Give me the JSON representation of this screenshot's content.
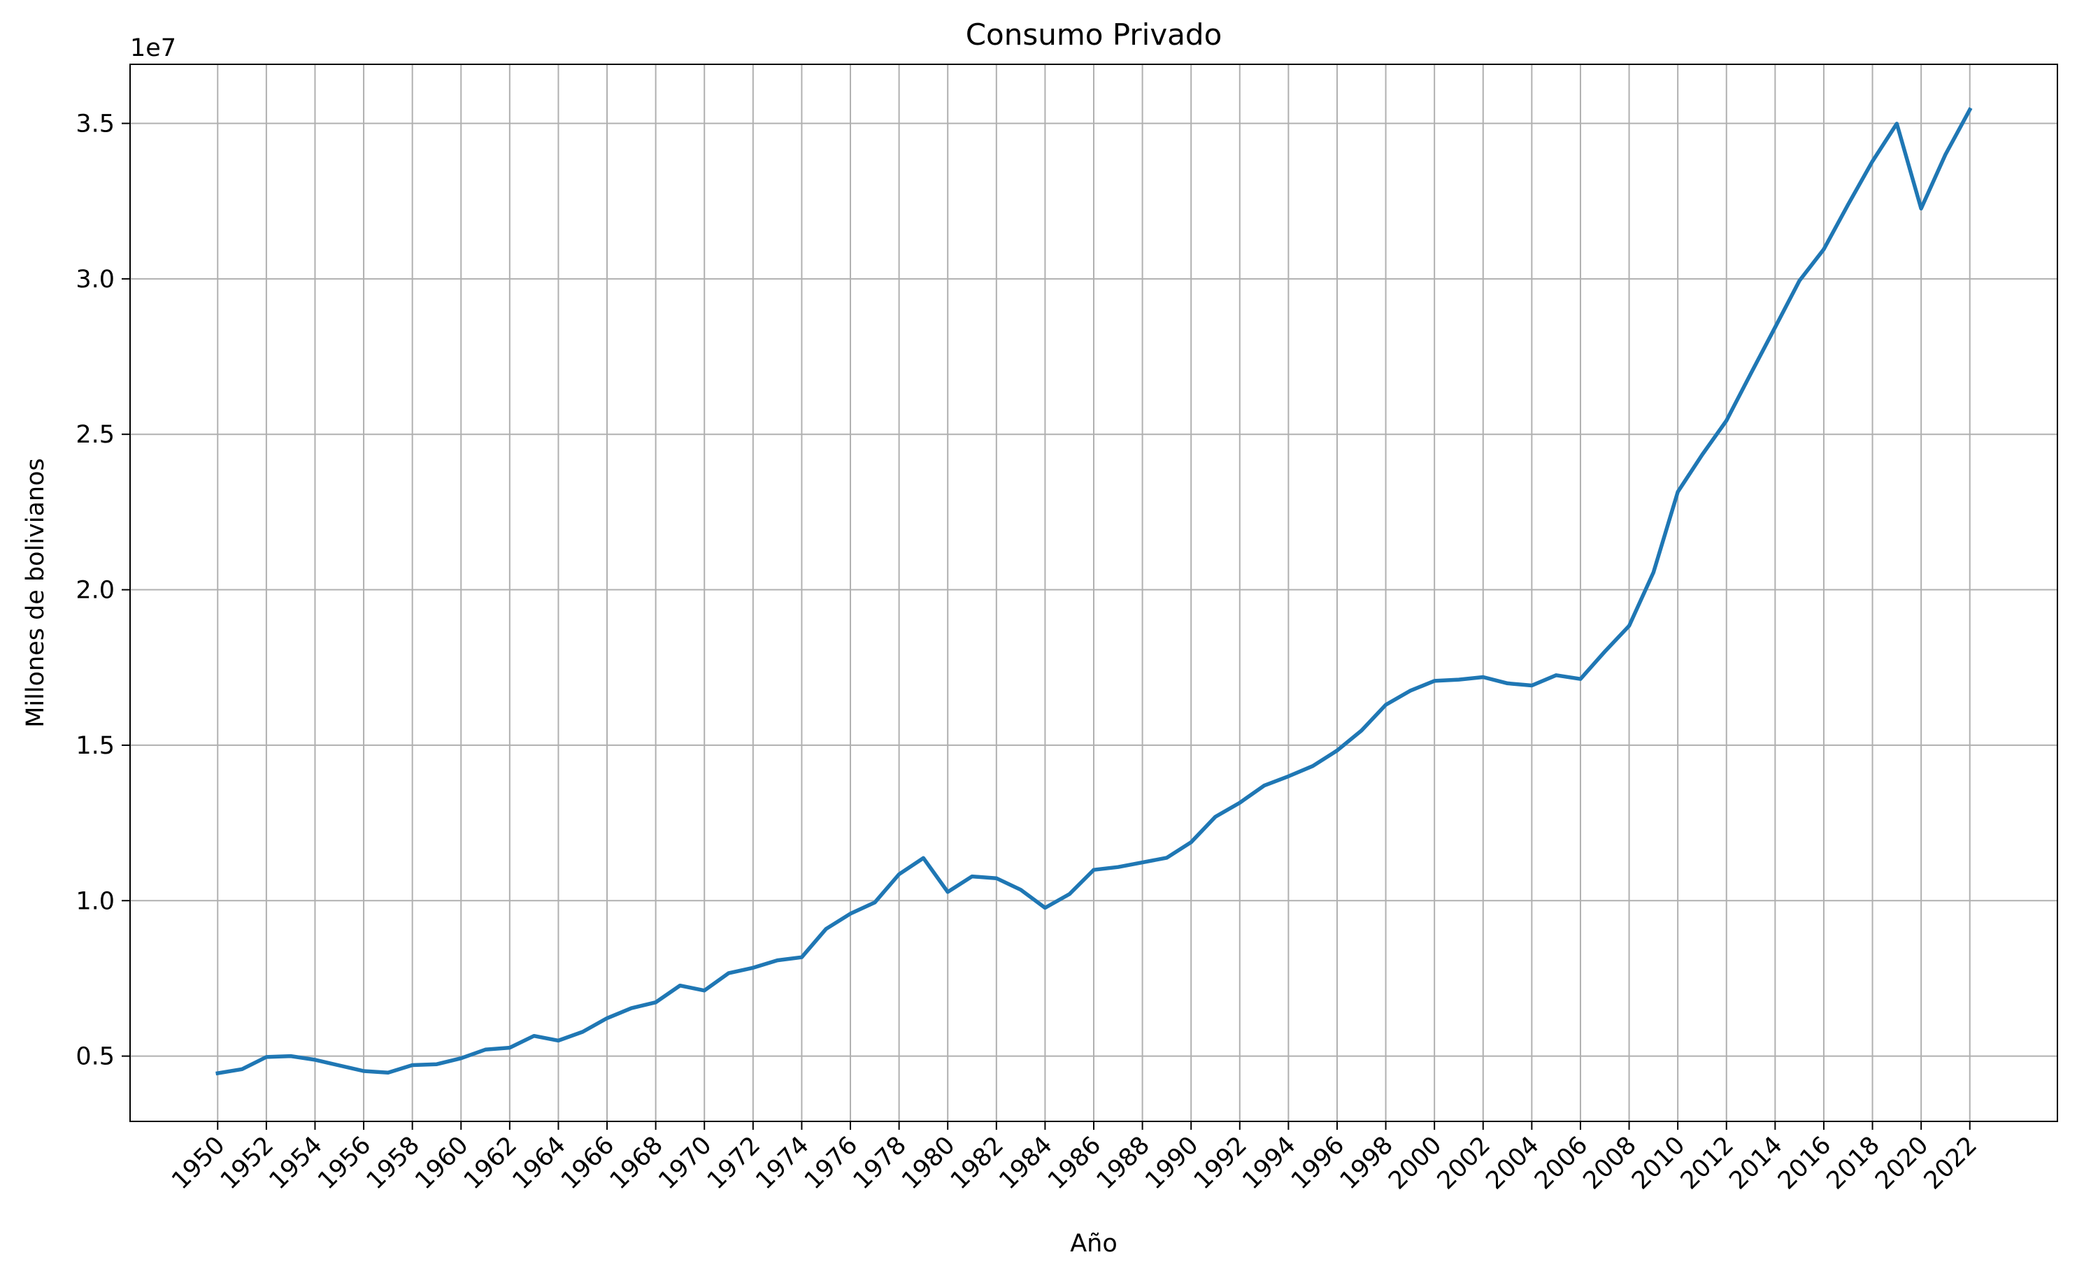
{
  "chart_data": {
    "type": "line",
    "title": "Consumo Privado",
    "xlabel": "Año",
    "ylabel": "Millones de bolivianos",
    "y_offset_label": "1e7",
    "xlim": [
      1946.4,
      2025.6
    ],
    "ylim": [
      2900000,
      36900000
    ],
    "grid": true,
    "legend": "none",
    "line_color": "#1f77b4",
    "x_ticks": [
      1950,
      1952,
      1954,
      1956,
      1958,
      1960,
      1962,
      1964,
      1966,
      1968,
      1970,
      1972,
      1974,
      1976,
      1978,
      1980,
      1982,
      1984,
      1986,
      1988,
      1990,
      1992,
      1994,
      1996,
      1998,
      2000,
      2002,
      2004,
      2006,
      2008,
      2010,
      2012,
      2014,
      2016,
      2018,
      2020,
      2022
    ],
    "y_ticks": [
      {
        "value": 5000000,
        "label": "0.5"
      },
      {
        "value": 10000000,
        "label": "1.0"
      },
      {
        "value": 15000000,
        "label": "1.5"
      },
      {
        "value": 20000000,
        "label": "2.0"
      },
      {
        "value": 25000000,
        "label": "2.5"
      },
      {
        "value": 30000000,
        "label": "3.0"
      },
      {
        "value": 35000000,
        "label": "3.5"
      }
    ],
    "series": [
      {
        "x": [
          1950,
          1951,
          1952,
          1953,
          1954,
          1955,
          1956,
          1957,
          1958,
          1959,
          1960,
          1961,
          1962,
          1963,
          1964,
          1965,
          1966,
          1967,
          1968,
          1969,
          1970,
          1971,
          1972,
          1973,
          1974,
          1975,
          1976,
          1977,
          1978,
          1979,
          1980,
          1981,
          1982,
          1983,
          1984,
          1985,
          1986,
          1987,
          1988,
          1989,
          1990,
          1991,
          1992,
          1993,
          1994,
          1995,
          1996,
          1997,
          1998,
          1999,
          2000,
          2001,
          2002,
          2003,
          2004,
          2005,
          2006,
          2007,
          2008,
          2009,
          2010,
          2011,
          2012,
          2013,
          2014,
          2015,
          2016,
          2017,
          2018,
          2019,
          2020,
          2021,
          2022
        ],
        "values": [
          4450000,
          4580000,
          4970000,
          5000000,
          4880000,
          4700000,
          4520000,
          4470000,
          4710000,
          4740000,
          4930000,
          5210000,
          5270000,
          5650000,
          5500000,
          5780000,
          6220000,
          6540000,
          6730000,
          7270000,
          7110000,
          7670000,
          7840000,
          8080000,
          8180000,
          9090000,
          9580000,
          9940000,
          10850000,
          11370000,
          10280000,
          10780000,
          10720000,
          10350000,
          9770000,
          10210000,
          10990000,
          11080000,
          11230000,
          11380000,
          11880000,
          12700000,
          13150000,
          13700000,
          14000000,
          14330000,
          14830000,
          15470000,
          16300000,
          16750000,
          17070000,
          17110000,
          17190000,
          16990000,
          16920000,
          17250000,
          17130000,
          18010000,
          18840000,
          20560000,
          23150000,
          24340000,
          25440000,
          26950000,
          28440000,
          29940000,
          30950000,
          32390000,
          33780000,
          34990000,
          32260000,
          34000000,
          35440000
        ]
      }
    ]
  }
}
